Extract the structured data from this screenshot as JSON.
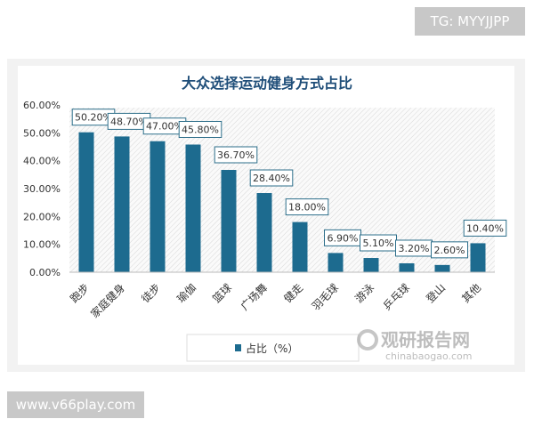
{
  "watermark_top": "TG: MYYJJPP",
  "watermark_bottom": "www.v66play.com",
  "logo": {
    "name": "观研报告网",
    "url": "chinabaogao.com"
  },
  "chart_data": {
    "type": "bar",
    "title": "大众选择运动健身方式占比",
    "categories": [
      "跑步",
      "家庭健身",
      "徒步",
      "瑜伽",
      "篮球",
      "广场舞",
      "健走",
      "羽毛球",
      "游泳",
      "乒乓球",
      "登山",
      "其他"
    ],
    "series": [
      {
        "name": "占比（%）",
        "values": [
          50.2,
          48.7,
          47.0,
          45.8,
          36.7,
          28.4,
          18.0,
          6.9,
          5.1,
          3.2,
          2.6,
          10.4
        ]
      }
    ],
    "data_labels": [
      "50.20%",
      "48.70%",
      "47.00%",
      "45.80%",
      "36.70%",
      "28.40%",
      "18.00%",
      "6.90%",
      "5.10%",
      "3.20%",
      "2.60%",
      "10.40%"
    ],
    "yticks": [
      "0.00%",
      "10.00%",
      "20.00%",
      "30.00%",
      "40.00%",
      "50.00%",
      "60.00%"
    ],
    "ylim": [
      0,
      60
    ],
    "xlabel": "",
    "ylabel": "",
    "legend_position": "bottom",
    "grid": false,
    "bar_color": "#1d6b8f",
    "title_color": "#1f4e79"
  }
}
